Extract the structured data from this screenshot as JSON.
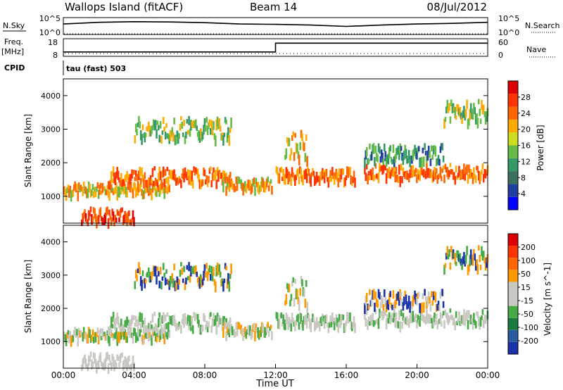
{
  "header": {
    "station": "Wallops Island (fitACF)",
    "beam": "Beam 14",
    "date": "08/Jul/2012"
  },
  "chart_data": [
    {
      "type": "line",
      "name": "noise-panel",
      "left_label": "N.Sky",
      "right_label": "N.Search",
      "yticks": [
        "10^5",
        "10^0"
      ],
      "ylim": [
        0,
        5
      ],
      "x": [
        "00:00",
        "02:00",
        "04:00",
        "06:00",
        "08:00",
        "10:00",
        "12:00",
        "14:00",
        "16:00",
        "18:00",
        "20:00",
        "22:00",
        "24:00"
      ],
      "series": [
        {
          "values": [
            3.1,
            3.6,
            3.8,
            3.7,
            3.5,
            3.1,
            3.0,
            2.8,
            2.4,
            2.8,
            3.1,
            3.3,
            3.6
          ]
        }
      ]
    },
    {
      "type": "line",
      "name": "frequency-panel",
      "left_label": "Freq.",
      "left_unit": "[MHz]",
      "right_label": "Nave",
      "yticks_left": [
        "18",
        "8"
      ],
      "yticks_right": [
        "60",
        "0"
      ],
      "x": [
        "00:00",
        "12:00",
        "12:00",
        "24:00"
      ],
      "series": [
        {
          "values": [
            10.5,
            10.5,
            15.5,
            15.5
          ]
        }
      ]
    },
    {
      "type": "text",
      "name": "cpid-panel",
      "label": "CPID",
      "text": "tau (fast) 503"
    },
    {
      "type": "heatmap",
      "name": "power-panel",
      "ylabel": "Slant Range [km]",
      "yticks": [
        1000,
        2000,
        3000,
        4000
      ],
      "ylim": [
        200,
        4500
      ],
      "xlim": [
        0,
        24
      ],
      "colorbar_label": "Power [dB]",
      "colorbar_ticks": [
        4,
        8,
        12,
        16,
        20,
        24,
        28
      ],
      "colorbar_colors": [
        "#0000ff",
        "#2040a0",
        "#3a7060",
        "#339966",
        "#66bb44",
        "#ccdd22",
        "#ffaa00",
        "#ff6600",
        "#ff3300",
        "#dd0000"
      ]
    },
    {
      "type": "heatmap",
      "name": "velocity-panel",
      "ylabel": "Slant Range [km]",
      "yticks": [
        1000,
        2000,
        3000,
        4000
      ],
      "ylim": [
        200,
        4500
      ],
      "xlim": [
        0,
        24
      ],
      "xlabel": "Time UT",
      "xticks": [
        "00:00",
        "04:00",
        "08:00",
        "12:00",
        "16:00",
        "20:00",
        "00:00"
      ],
      "colorbar_label": "Velocity [m s^-1]",
      "colorbar_ticks": [
        "200",
        "100",
        "50",
        "15",
        "-15",
        "-50",
        "-100",
        "-200"
      ],
      "colorbar_colors": [
        "#1a33aa",
        "#2a5aa0",
        "#1a7a40",
        "#44aa44",
        "#c8c8c0",
        "#c8c8c0",
        "#ff9900",
        "#ff6600",
        "#ff3300",
        "#dd0000"
      ]
    }
  ]
}
